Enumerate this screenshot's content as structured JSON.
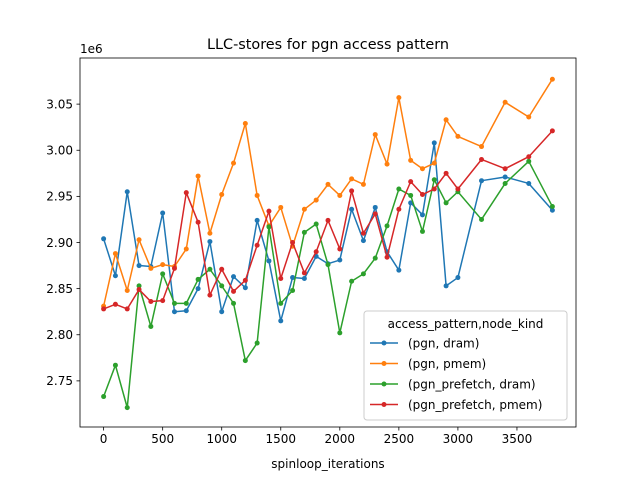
{
  "chart_data": {
    "type": "line",
    "title": "LLC-stores for pgn access pattern",
    "xlabel": "spinloop_iterations",
    "ylabel": "",
    "y_offset_label": "1e6",
    "xlim": [
      -200,
      4000
    ],
    "ylim": [
      2.7,
      3.1
    ],
    "x_ticks": [
      0,
      500,
      1000,
      1500,
      2000,
      2500,
      3000,
      3500
    ],
    "y_ticks": [
      2.75,
      2.8,
      2.85,
      2.9,
      2.95,
      3.0,
      3.05
    ],
    "grid": false,
    "legend": {
      "title": "access_pattern,node_kind",
      "placement": "lower-right"
    },
    "series": [
      {
        "name": "(pgn, dram)",
        "color": "#1f77b4",
        "x": [
          0,
          100,
          200,
          300,
          400,
          500,
          600,
          700,
          800,
          900,
          1000,
          1100,
          1200,
          1300,
          1400,
          1500,
          1600,
          1700,
          1800,
          1900,
          2000,
          2100,
          2200,
          2300,
          2400,
          2500,
          2600,
          2700,
          2800,
          2900,
          3000,
          3200,
          3400,
          3600,
          3800
        ],
        "y": [
          2.904,
          2.864,
          2.955,
          2.875,
          2.874,
          2.932,
          2.825,
          2.826,
          2.85,
          2.901,
          2.825,
          2.863,
          2.851,
          2.924,
          2.88,
          2.815,
          2.862,
          2.861,
          2.885,
          2.877,
          2.881,
          2.936,
          2.902,
          2.938,
          2.89,
          2.87,
          2.943,
          2.93,
          3.008,
          2.853,
          2.862,
          2.967,
          2.971,
          2.964,
          2.935
        ]
      },
      {
        "name": "(pgn, pmem)",
        "color": "#ff7f0e",
        "x": [
          0,
          100,
          200,
          300,
          400,
          500,
          600,
          700,
          800,
          900,
          1000,
          1100,
          1200,
          1300,
          1400,
          1500,
          1600,
          1700,
          1800,
          1900,
          2000,
          2100,
          2200,
          2300,
          2400,
          2500,
          2600,
          2700,
          2800,
          2900,
          3000,
          3200,
          3400,
          3600,
          3800
        ],
        "y": [
          2.831,
          2.888,
          2.848,
          2.903,
          2.872,
          2.876,
          2.874,
          2.893,
          2.972,
          2.91,
          2.952,
          2.986,
          3.029,
          2.951,
          2.918,
          2.938,
          2.896,
          2.936,
          2.946,
          2.963,
          2.951,
          2.969,
          2.963,
          3.017,
          2.985,
          3.057,
          2.989,
          2.98,
          2.986,
          3.033,
          3.015,
          3.004,
          3.052,
          3.036,
          3.077
        ]
      },
      {
        "name": "(pgn_prefetch, dram)",
        "color": "#2ca02c",
        "x": [
          0,
          100,
          200,
          300,
          400,
          500,
          600,
          700,
          800,
          900,
          1000,
          1100,
          1200,
          1300,
          1400,
          1500,
          1600,
          1700,
          1800,
          1900,
          2000,
          2100,
          2200,
          2300,
          2400,
          2500,
          2600,
          2700,
          2800,
          2900,
          3000,
          3200,
          3400,
          3600,
          3800
        ],
        "y": [
          2.733,
          2.767,
          2.721,
          2.853,
          2.809,
          2.866,
          2.834,
          2.834,
          2.86,
          2.871,
          2.853,
          2.834,
          2.772,
          2.791,
          2.917,
          2.834,
          2.848,
          2.911,
          2.92,
          2.876,
          2.802,
          2.858,
          2.866,
          2.883,
          2.918,
          2.958,
          2.951,
          2.912,
          2.968,
          2.943,
          2.955,
          2.925,
          2.964,
          2.988,
          2.939
        ]
      },
      {
        "name": "(pgn_prefetch, pmem)",
        "color": "#d62728",
        "x": [
          0,
          100,
          200,
          300,
          400,
          500,
          600,
          700,
          800,
          900,
          1000,
          1100,
          1200,
          1300,
          1400,
          1500,
          1600,
          1700,
          1800,
          1900,
          2000,
          2100,
          2200,
          2300,
          2400,
          2500,
          2600,
          2700,
          2800,
          2900,
          3000,
          3200,
          3400,
          3600,
          3800
        ],
        "y": [
          2.828,
          2.833,
          2.828,
          2.849,
          2.836,
          2.837,
          2.872,
          2.954,
          2.922,
          2.843,
          2.871,
          2.847,
          2.859,
          2.897,
          2.934,
          2.861,
          2.9,
          2.867,
          2.89,
          2.924,
          2.893,
          2.956,
          2.91,
          2.931,
          2.884,
          2.936,
          2.966,
          2.952,
          2.958,
          2.975,
          2.958,
          2.99,
          2.98,
          2.993,
          3.021
        ]
      }
    ]
  }
}
